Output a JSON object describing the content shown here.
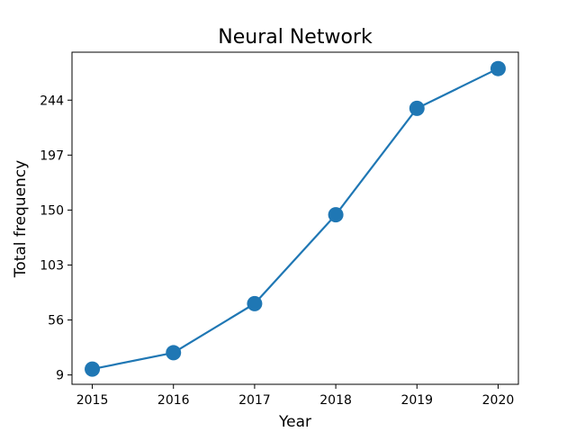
{
  "chart_data": {
    "type": "line",
    "title": "Neural Network",
    "xlabel": "Year",
    "ylabel": "Total frequency",
    "x": [
      2015,
      2016,
      2017,
      2018,
      2019,
      2020
    ],
    "x_tick_labels": [
      "2015",
      "2016",
      "2017",
      "2018",
      "2019",
      "2020"
    ],
    "series": [
      {
        "values": [
          14,
          28,
          70,
          146,
          237,
          271
        ]
      }
    ],
    "y_ticks": [
      9,
      56,
      103,
      150,
      197,
      244
    ],
    "y_tick_labels": [
      "9",
      "56",
      "103",
      "150",
      "197",
      "244"
    ],
    "xlim": [
      2014.75,
      2020.25
    ],
    "ylim": [
      1,
      285
    ],
    "grid": false,
    "color": "#1f77b4"
  }
}
